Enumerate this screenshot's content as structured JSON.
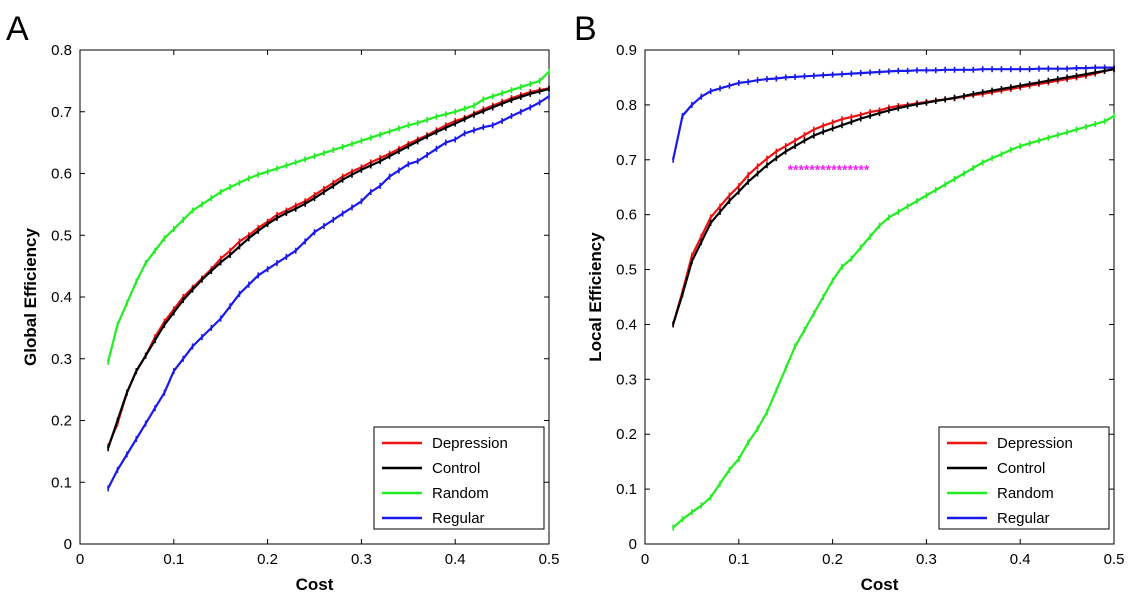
{
  "chart_data": [
    {
      "type": "line",
      "panel_label": "A",
      "xlabel": "Cost",
      "ylabel": "Global Efficiency",
      "xlim": [
        0,
        0.5
      ],
      "ylim": [
        0,
        0.8
      ],
      "x_ticks": [
        0,
        0.1,
        0.2,
        0.3,
        0.4,
        0.5
      ],
      "x_tick_labels": [
        "0",
        "0.1",
        "0.2",
        "0.3",
        "0.4",
        "0.5"
      ],
      "y_ticks": [
        0,
        0.1,
        0.2,
        0.3,
        0.4,
        0.5,
        0.6,
        0.7,
        0.8
      ],
      "y_tick_labels": [
        "0",
        "0.1",
        "0.2",
        "0.3",
        "0.4",
        "0.5",
        "0.6",
        "0.7",
        "0.8"
      ],
      "grid": false,
      "legend_position": "bottom-right",
      "x": [
        0.03,
        0.04,
        0.05,
        0.06,
        0.07,
        0.08,
        0.09,
        0.1,
        0.11,
        0.12,
        0.13,
        0.14,
        0.15,
        0.16,
        0.17,
        0.18,
        0.19,
        0.2,
        0.21,
        0.22,
        0.23,
        0.24,
        0.25,
        0.26,
        0.27,
        0.28,
        0.29,
        0.3,
        0.31,
        0.32,
        0.33,
        0.34,
        0.35,
        0.36,
        0.37,
        0.38,
        0.39,
        0.4,
        0.41,
        0.42,
        0.43,
        0.44,
        0.45,
        0.46,
        0.47,
        0.48,
        0.49,
        0.5
      ],
      "series": [
        {
          "name": "Random",
          "color": "#22ee22",
          "values": [
            0.295,
            0.355,
            0.39,
            0.425,
            0.455,
            0.475,
            0.495,
            0.51,
            0.525,
            0.54,
            0.55,
            0.56,
            0.57,
            0.578,
            0.585,
            0.592,
            0.598,
            0.603,
            0.608,
            0.613,
            0.618,
            0.623,
            0.628,
            0.633,
            0.638,
            0.643,
            0.648,
            0.653,
            0.658,
            0.663,
            0.668,
            0.673,
            0.678,
            0.682,
            0.687,
            0.692,
            0.696,
            0.7,
            0.705,
            0.71,
            0.72,
            0.725,
            0.73,
            0.735,
            0.74,
            0.745,
            0.75,
            0.765
          ]
        },
        {
          "name": "Regular",
          "color": "#1a1aee",
          "values": [
            0.09,
            0.12,
            0.145,
            0.17,
            0.195,
            0.22,
            0.245,
            0.28,
            0.3,
            0.32,
            0.335,
            0.35,
            0.365,
            0.385,
            0.405,
            0.42,
            0.435,
            0.445,
            0.455,
            0.465,
            0.475,
            0.49,
            0.505,
            0.515,
            0.525,
            0.535,
            0.545,
            0.555,
            0.57,
            0.58,
            0.595,
            0.605,
            0.615,
            0.62,
            0.63,
            0.64,
            0.65,
            0.655,
            0.665,
            0.67,
            0.675,
            0.678,
            0.685,
            0.693,
            0.7,
            0.707,
            0.715,
            0.725
          ]
        },
        {
          "name": "Depression",
          "color": "#ee1111",
          "values": [
            0.158,
            0.195,
            0.245,
            0.28,
            0.305,
            0.335,
            0.36,
            0.38,
            0.4,
            0.415,
            0.43,
            0.445,
            0.462,
            0.475,
            0.49,
            0.5,
            0.512,
            0.522,
            0.533,
            0.54,
            0.548,
            0.555,
            0.565,
            0.575,
            0.585,
            0.595,
            0.603,
            0.61,
            0.618,
            0.625,
            0.632,
            0.64,
            0.648,
            0.655,
            0.662,
            0.67,
            0.678,
            0.685,
            0.69,
            0.697,
            0.704,
            0.71,
            0.716,
            0.722,
            0.727,
            0.732,
            0.735,
            0.738
          ]
        },
        {
          "name": "Control",
          "color": "#000000",
          "values": [
            0.155,
            0.2,
            0.245,
            0.28,
            0.305,
            0.33,
            0.355,
            0.375,
            0.395,
            0.412,
            0.428,
            0.442,
            0.456,
            0.468,
            0.482,
            0.495,
            0.507,
            0.518,
            0.528,
            0.536,
            0.543,
            0.551,
            0.56,
            0.57,
            0.58,
            0.59,
            0.598,
            0.606,
            0.613,
            0.62,
            0.628,
            0.636,
            0.644,
            0.652,
            0.66,
            0.667,
            0.674,
            0.681,
            0.688,
            0.695,
            0.701,
            0.707,
            0.713,
            0.719,
            0.724,
            0.729,
            0.733,
            0.737
          ]
        }
      ]
    },
    {
      "type": "line",
      "panel_label": "B",
      "xlabel": "Cost",
      "ylabel": "Local Efficiency",
      "xlim": [
        0,
        0.5
      ],
      "ylim": [
        0,
        0.9
      ],
      "x_ticks": [
        0,
        0.1,
        0.2,
        0.3,
        0.4,
        0.5
      ],
      "x_tick_labels": [
        "0",
        "0.1",
        "0.2",
        "0.3",
        "0.4",
        "0.5"
      ],
      "y_ticks": [
        0,
        0.1,
        0.2,
        0.3,
        0.4,
        0.5,
        0.6,
        0.7,
        0.8,
        0.9
      ],
      "y_tick_labels": [
        "0",
        "0.1",
        "0.2",
        "0.3",
        "0.4",
        "0.5",
        "0.6",
        "0.7",
        "0.8",
        "0.9"
      ],
      "grid": false,
      "legend_position": "bottom-right",
      "annotation": {
        "text": "***************",
        "x": 0.152,
        "y": 0.688,
        "color": "#ee22ee"
      },
      "x": [
        0.03,
        0.04,
        0.05,
        0.06,
        0.07,
        0.08,
        0.09,
        0.1,
        0.11,
        0.12,
        0.13,
        0.14,
        0.15,
        0.16,
        0.17,
        0.18,
        0.19,
        0.2,
        0.21,
        0.22,
        0.23,
        0.24,
        0.25,
        0.26,
        0.27,
        0.28,
        0.29,
        0.3,
        0.31,
        0.32,
        0.33,
        0.34,
        0.35,
        0.36,
        0.37,
        0.38,
        0.39,
        0.4,
        0.41,
        0.42,
        0.43,
        0.44,
        0.45,
        0.46,
        0.47,
        0.48,
        0.49,
        0.5
      ],
      "series": [
        {
          "name": "Random",
          "color": "#22ee22",
          "values": [
            0.03,
            0.045,
            0.058,
            0.07,
            0.085,
            0.11,
            0.135,
            0.155,
            0.185,
            0.21,
            0.24,
            0.28,
            0.32,
            0.36,
            0.39,
            0.42,
            0.45,
            0.48,
            0.505,
            0.52,
            0.54,
            0.56,
            0.58,
            0.595,
            0.605,
            0.615,
            0.625,
            0.635,
            0.645,
            0.655,
            0.665,
            0.675,
            0.685,
            0.695,
            0.703,
            0.71,
            0.718,
            0.725,
            0.73,
            0.735,
            0.74,
            0.745,
            0.75,
            0.755,
            0.76,
            0.765,
            0.77,
            0.78
          ]
        },
        {
          "name": "Regular",
          "color": "#1a1aee",
          "values": [
            0.7,
            0.78,
            0.8,
            0.815,
            0.825,
            0.83,
            0.835,
            0.84,
            0.842,
            0.845,
            0.847,
            0.848,
            0.85,
            0.851,
            0.852,
            0.853,
            0.854,
            0.855,
            0.856,
            0.857,
            0.858,
            0.859,
            0.86,
            0.861,
            0.862,
            0.862,
            0.863,
            0.863,
            0.863,
            0.864,
            0.864,
            0.864,
            0.864,
            0.865,
            0.865,
            0.865,
            0.865,
            0.865,
            0.865,
            0.866,
            0.866,
            0.866,
            0.866,
            0.867,
            0.867,
            0.868,
            0.868,
            0.868
          ]
        },
        {
          "name": "Depression",
          "color": "#ee1111",
          "values": [
            0.4,
            0.46,
            0.525,
            0.56,
            0.595,
            0.615,
            0.635,
            0.652,
            0.672,
            0.688,
            0.702,
            0.715,
            0.725,
            0.735,
            0.745,
            0.755,
            0.762,
            0.768,
            0.774,
            0.778,
            0.782,
            0.787,
            0.79,
            0.795,
            0.798,
            0.8,
            0.803,
            0.805,
            0.808,
            0.81,
            0.812,
            0.815,
            0.818,
            0.82,
            0.823,
            0.826,
            0.829,
            0.832,
            0.835,
            0.838,
            0.841,
            0.844,
            0.847,
            0.85,
            0.853,
            0.857,
            0.862,
            0.865
          ]
        },
        {
          "name": "Control",
          "color": "#000000",
          "values": [
            0.4,
            0.455,
            0.515,
            0.55,
            0.585,
            0.605,
            0.625,
            0.642,
            0.66,
            0.675,
            0.69,
            0.703,
            0.715,
            0.725,
            0.735,
            0.744,
            0.751,
            0.757,
            0.763,
            0.769,
            0.775,
            0.78,
            0.785,
            0.79,
            0.794,
            0.798,
            0.801,
            0.804,
            0.807,
            0.81,
            0.813,
            0.816,
            0.82,
            0.823,
            0.826,
            0.829,
            0.832,
            0.835,
            0.838,
            0.841,
            0.844,
            0.847,
            0.85,
            0.853,
            0.856,
            0.859,
            0.862,
            0.865
          ]
        }
      ]
    }
  ]
}
